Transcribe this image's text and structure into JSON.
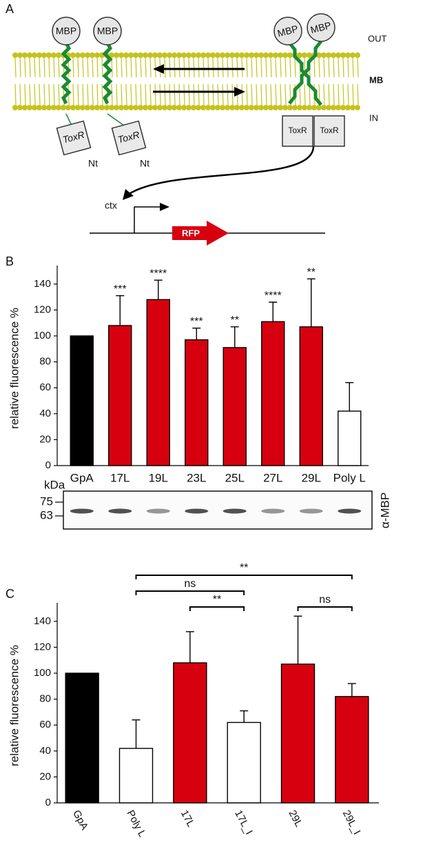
{
  "diagram": {
    "panel_label": "A",
    "mbp": [
      "MBP",
      "MBP",
      "MBP",
      "MBP"
    ],
    "out": "OUT",
    "membrane": "MB",
    "in": "IN",
    "toxr": [
      "ToxR",
      "ToxR",
      "ToxR",
      "ToxR"
    ],
    "nt": [
      "Nt",
      "Nt"
    ],
    "promoter": "ctx",
    "reporter": "RFP"
  },
  "chart_data": [
    {
      "type": "bar",
      "panel_label": "B",
      "ylabel": "relative fluorescence %",
      "categories": [
        "GpA",
        "17L",
        "19L",
        "23L",
        "25L",
        "27L",
        "29L",
        "Poly L"
      ],
      "values": [
        100,
        108,
        128,
        97,
        91,
        111,
        107,
        42
      ],
      "errors": [
        null,
        23,
        15,
        9,
        16,
        15,
        37,
        22
      ],
      "significance": [
        null,
        "***",
        "****",
        "***",
        "**",
        "****",
        "**",
        null
      ],
      "colors": [
        "#000000",
        "#d7000f",
        "#d7000f",
        "#d7000f",
        "#d7000f",
        "#d7000f",
        "#d7000f",
        "#ffffff"
      ],
      "ylim": [
        0,
        150
      ],
      "yticks": [
        0,
        20,
        40,
        60,
        80,
        100,
        120,
        140
      ]
    },
    {
      "type": "bar",
      "panel_label": "C",
      "ylabel": "relative fluorescence %",
      "categories": [
        "GpA",
        "Poly L",
        "17L",
        "17L_I",
        "29L",
        "29L_I"
      ],
      "values": [
        100,
        42,
        108,
        62,
        107,
        82
      ],
      "errors": [
        null,
        22,
        24,
        9,
        37,
        10
      ],
      "colors": [
        "#000000",
        "#ffffff",
        "#d7000f",
        "#ffffff",
        "#d7000f",
        "#d7000f"
      ],
      "comparisons": [
        {
          "from": "Poly L",
          "to": "29L_I",
          "label": "**"
        },
        {
          "from": "Poly L",
          "to": "17L_I",
          "label": "ns"
        },
        {
          "from": "17L",
          "to": "17L_I",
          "label": "**"
        },
        {
          "from": "29L",
          "to": "29L_I",
          "label": "ns"
        }
      ],
      "ylim": [
        0,
        150
      ],
      "yticks": [
        0,
        20,
        40,
        60,
        80,
        100,
        120,
        140
      ]
    }
  ],
  "blot": {
    "unit": "kDa",
    "markers": [
      75,
      63
    ],
    "antibody": "α-MBP"
  }
}
